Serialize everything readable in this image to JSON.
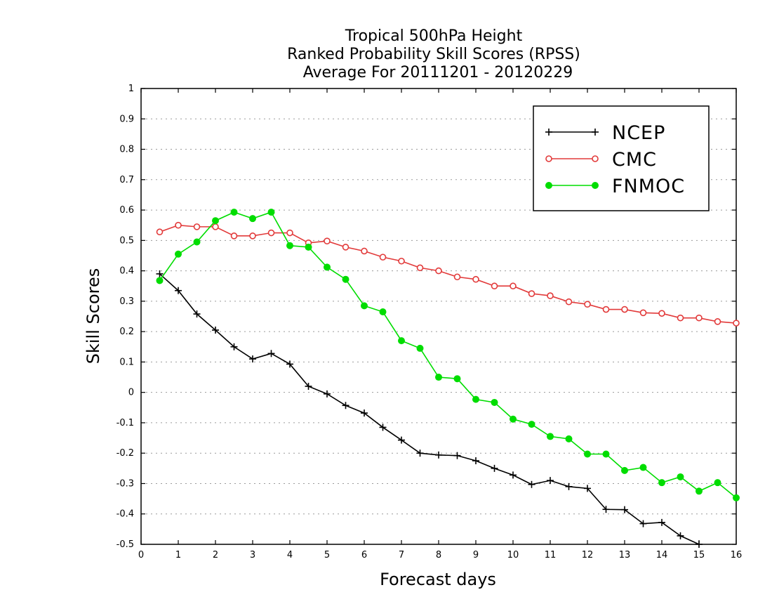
{
  "chart_data": {
    "type": "line",
    "title": [
      "Tropical 500hPa Height",
      "Ranked Probability Skill Scores (RPSS)",
      "Average For 20111201 - 20120229"
    ],
    "xlabel": "Forecast days",
    "ylabel": "Skill Scores",
    "xlim": [
      0,
      16
    ],
    "ylim": [
      -0.5,
      1
    ],
    "x_ticks": [
      0,
      1,
      2,
      3,
      4,
      5,
      6,
      7,
      8,
      9,
      10,
      11,
      12,
      13,
      14,
      15,
      16
    ],
    "y_ticks": [
      -0.5,
      -0.4,
      -0.3,
      -0.2,
      -0.1,
      0,
      0.1,
      0.2,
      0.3,
      0.4,
      0.5,
      0.6,
      0.7,
      0.8,
      0.9,
      1
    ],
    "y_tick_labels": [
      "-0.5",
      "-0.4",
      "-0.3",
      "-0.2",
      "-0.1",
      "0",
      "0.1",
      "0.2",
      "0.3",
      "0.4",
      "0.5",
      "0.6",
      "0.7",
      "0.8",
      "0.9",
      "1"
    ],
    "grid": "horizontal dotted",
    "legend_position": "top-right",
    "x": [
      0.5,
      1,
      1.5,
      2,
      2.5,
      3,
      3.5,
      4,
      4.5,
      5,
      5.5,
      6,
      6.5,
      7,
      7.5,
      8,
      8.5,
      9,
      9.5,
      10,
      10.5,
      11,
      11.5,
      12,
      12.5,
      13,
      13.5,
      14,
      14.5,
      15,
      15.5,
      16
    ],
    "series": [
      {
        "name": "NCEP",
        "color": "#000000",
        "marker": "plus",
        "values": [
          0.39,
          0.335,
          0.258,
          0.205,
          0.15,
          0.11,
          0.128,
          0.093,
          0.02,
          -0.005,
          -0.043,
          -0.068,
          -0.115,
          -0.157,
          -0.2,
          -0.206,
          -0.208,
          -0.225,
          -0.25,
          -0.272,
          -0.303,
          -0.29,
          -0.31,
          -0.316,
          -0.385,
          -0.386,
          -0.432,
          -0.428,
          -0.472,
          -0.5,
          null,
          null
        ]
      },
      {
        "name": "CMC",
        "color": "#e23a3a",
        "marker": "open-circle",
        "values": [
          0.528,
          0.55,
          0.545,
          0.545,
          0.515,
          0.515,
          0.525,
          0.525,
          0.492,
          0.498,
          0.478,
          0.465,
          0.445,
          0.432,
          0.41,
          0.4,
          0.38,
          0.372,
          0.35,
          0.35,
          0.325,
          0.318,
          0.298,
          0.29,
          0.273,
          0.273,
          0.262,
          0.26,
          0.245,
          0.245,
          0.233,
          0.228
        ]
      },
      {
        "name": "FNMOC",
        "color": "#00dd00",
        "marker": "filled-circle",
        "values": [
          0.368,
          0.455,
          0.495,
          0.565,
          0.593,
          0.572,
          0.593,
          0.483,
          0.478,
          0.412,
          0.372,
          0.285,
          0.265,
          0.17,
          0.145,
          0.05,
          0.045,
          -0.023,
          -0.033,
          -0.088,
          -0.105,
          -0.145,
          -0.153,
          -0.203,
          -0.203,
          -0.257,
          -0.247,
          -0.297,
          -0.278,
          -0.325,
          -0.297,
          -0.347
        ]
      }
    ]
  }
}
